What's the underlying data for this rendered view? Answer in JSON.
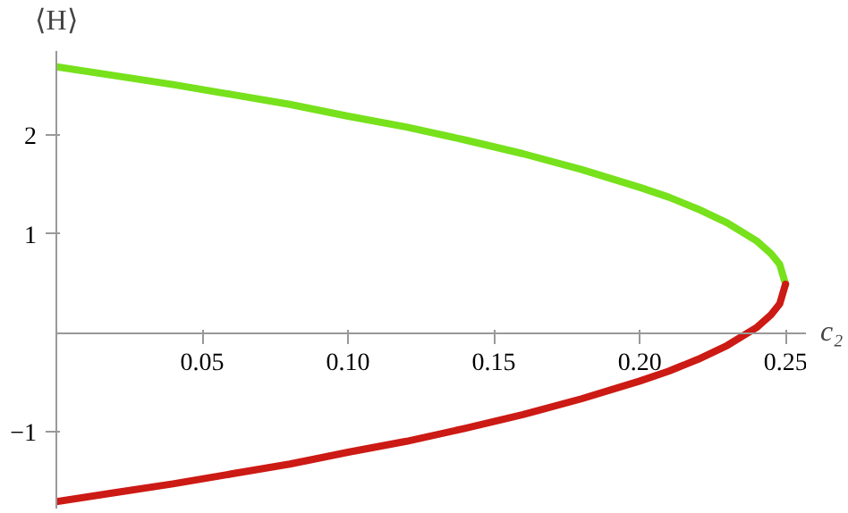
{
  "chart_data": {
    "type": "line",
    "xlabel": "c₂",
    "ylabel": "⟨H⟩",
    "x": [
      0,
      0.02,
      0.04,
      0.06,
      0.08,
      0.1,
      0.12,
      0.14,
      0.16,
      0.18,
      0.2,
      0.21,
      0.22,
      0.23,
      0.24,
      0.245,
      0.248,
      0.25
    ],
    "series": [
      {
        "color": "#77e11c",
        "values": [
          2.69,
          2.6,
          2.51,
          2.41,
          2.31,
          2.19,
          2.08,
          1.95,
          1.81,
          1.65,
          1.47,
          1.37,
          1.25,
          1.11,
          0.93,
          0.8,
          0.69,
          0.49
        ]
      },
      {
        "color": "#cc1a14",
        "values": [
          -1.71,
          -1.62,
          -1.53,
          -1.43,
          -1.33,
          -1.21,
          -1.1,
          -0.97,
          -0.83,
          -0.67,
          -0.49,
          -0.39,
          -0.27,
          -0.13,
          0.05,
          0.18,
          0.29,
          0.49
        ]
      }
    ],
    "xlim": [
      0,
      0.257
    ],
    "ylim": [
      -1.78,
      2.85
    ],
    "xticks": [
      0.05,
      {
        "value": 0.1,
        "label": "0.10"
      },
      0.15,
      {
        "value": 0.2,
        "label": "0.20"
      },
      0.25
    ],
    "yticks": [
      -1,
      1,
      2
    ],
    "grid": false,
    "marker": "none",
    "line_style": "solid"
  }
}
